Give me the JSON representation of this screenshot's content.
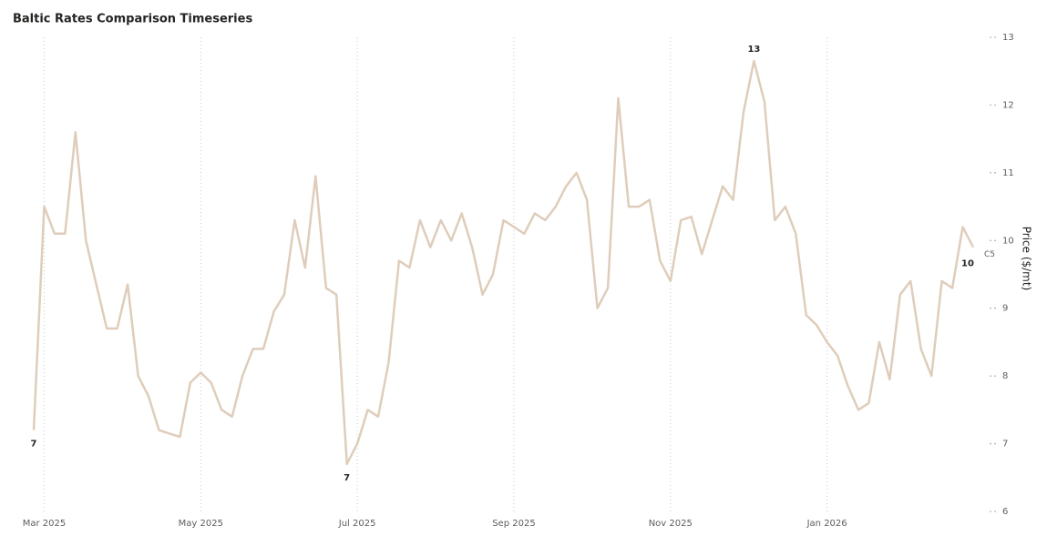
{
  "chart_data": {
    "type": "line",
    "title": "Baltic Rates Comparison Timeseries",
    "y_label": "Price ($/mt)",
    "categories": [
      null,
      "Mar 2025",
      null,
      null,
      null,
      null,
      null,
      null,
      null,
      null,
      null,
      null,
      null,
      null,
      null,
      null,
      "May 2025",
      null,
      null,
      null,
      null,
      null,
      null,
      null,
      null,
      null,
      null,
      null,
      null,
      null,
      null,
      "Jul 2025",
      null,
      null,
      null,
      null,
      null,
      null,
      null,
      null,
      null,
      null,
      null,
      null,
      null,
      null,
      "Sep 2025",
      null,
      null,
      null,
      null,
      null,
      null,
      null,
      null,
      null,
      null,
      null,
      null,
      null,
      null,
      "Nov 2025",
      null,
      null,
      null,
      null,
      null,
      null,
      null,
      null,
      null,
      null,
      null,
      null,
      null,
      null,
      "Jan 2026",
      null,
      null,
      null,
      null,
      null,
      null,
      null,
      null,
      null,
      null,
      null,
      null,
      null,
      null
    ],
    "series": [
      {
        "name": "C5",
        "color": "#dfcdbb",
        "values": [
          7.2,
          10.5,
          10.1,
          10.1,
          11.6,
          10.0,
          9.35,
          8.7,
          8.7,
          9.35,
          8.0,
          7.7,
          7.2,
          7.15,
          7.1,
          7.9,
          8.05,
          7.9,
          7.5,
          7.4,
          8.0,
          8.4,
          8.4,
          8.95,
          9.2,
          10.3,
          9.6,
          10.95,
          9.3,
          9.2,
          6.7,
          7.0,
          7.5,
          7.4,
          8.2,
          9.7,
          9.6,
          10.3,
          9.9,
          10.3,
          10.0,
          10.4,
          9.9,
          9.2,
          9.5,
          10.3,
          10.2,
          10.1,
          10.4,
          10.3,
          10.5,
          10.8,
          11.0,
          10.6,
          9.0,
          9.3,
          12.1,
          10.5,
          10.5,
          10.6,
          9.7,
          9.4,
          10.3,
          10.35,
          9.8,
          10.3,
          10.8,
          10.6,
          11.9,
          12.65,
          12.05,
          10.3,
          10.5,
          10.1,
          8.9,
          8.75,
          8.5,
          8.3,
          7.85,
          7.5,
          7.6,
          8.5,
          7.95,
          9.2,
          9.4,
          8.4,
          8.0,
          9.4,
          9.3,
          10.2,
          9.9
        ],
        "value_labels": [
          "7",
          null,
          null,
          null,
          null,
          null,
          null,
          null,
          null,
          null,
          null,
          null,
          null,
          null,
          null,
          null,
          null,
          null,
          null,
          null,
          null,
          null,
          null,
          null,
          null,
          null,
          null,
          null,
          null,
          null,
          "7",
          null,
          null,
          null,
          null,
          null,
          null,
          null,
          null,
          null,
          null,
          null,
          null,
          null,
          null,
          null,
          null,
          null,
          null,
          null,
          null,
          null,
          null,
          null,
          null,
          null,
          null,
          null,
          null,
          null,
          null,
          null,
          null,
          null,
          null,
          null,
          null,
          null,
          null,
          "13",
          null,
          null,
          null,
          null,
          null,
          null,
          null,
          null,
          null,
          null,
          null,
          null,
          null,
          null,
          null,
          null,
          null,
          null,
          null,
          null,
          "10"
        ]
      }
    ],
    "ylim": [
      6,
      13
    ],
    "yticks": [
      6,
      7,
      8,
      9,
      10,
      11,
      12,
      13
    ],
    "y_axis_side": "right",
    "x_grid": true
  }
}
